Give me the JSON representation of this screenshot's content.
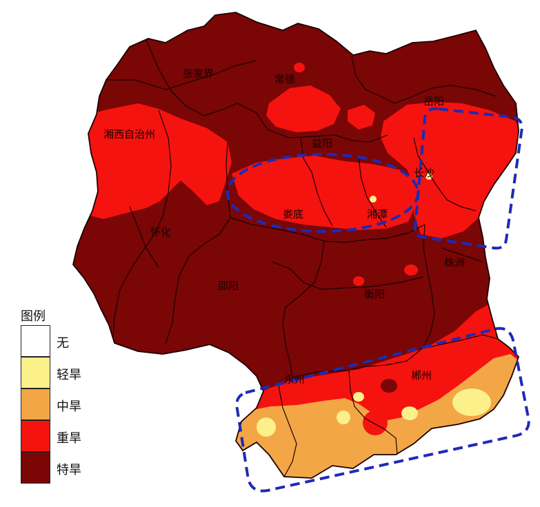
{
  "cities": [
    {
      "id": "zhangjiajie",
      "name": "张家界"
    },
    {
      "id": "changde",
      "name": "常德"
    },
    {
      "id": "yueyang",
      "name": "岳阳"
    },
    {
      "id": "xiangxi",
      "name": "湘西自治州"
    },
    {
      "id": "yiyang",
      "name": "益阳"
    },
    {
      "id": "changsha",
      "name": "长沙"
    },
    {
      "id": "loudi",
      "name": "娄底"
    },
    {
      "id": "xiangtan",
      "name": "湘潭"
    },
    {
      "id": "huaihua",
      "name": "怀化"
    },
    {
      "id": "zhuzhou",
      "name": "株洲"
    },
    {
      "id": "shaoyang",
      "name": "邵阳"
    },
    {
      "id": "hengyang",
      "name": "衡阳"
    },
    {
      "id": "yongzhou",
      "name": "永州"
    },
    {
      "id": "chenzhou",
      "name": "郴州"
    }
  ],
  "legend": {
    "title": "图例",
    "items": [
      {
        "label": "无",
        "color": "#ffffff"
      },
      {
        "label": "轻旱",
        "color": "#fbf08a"
      },
      {
        "label": "中旱",
        "color": "#f3a646"
      },
      {
        "label": "重旱",
        "color": "#f5130f"
      },
      {
        "label": "特旱",
        "color": "#7a0606"
      }
    ]
  },
  "colors": {
    "extreme": "#7a0606",
    "severe": "#f5130f",
    "moderate": "#f3a646",
    "light": "#fbf08a",
    "boundary": "#1a0000",
    "highlight": "#1d2bb5"
  }
}
